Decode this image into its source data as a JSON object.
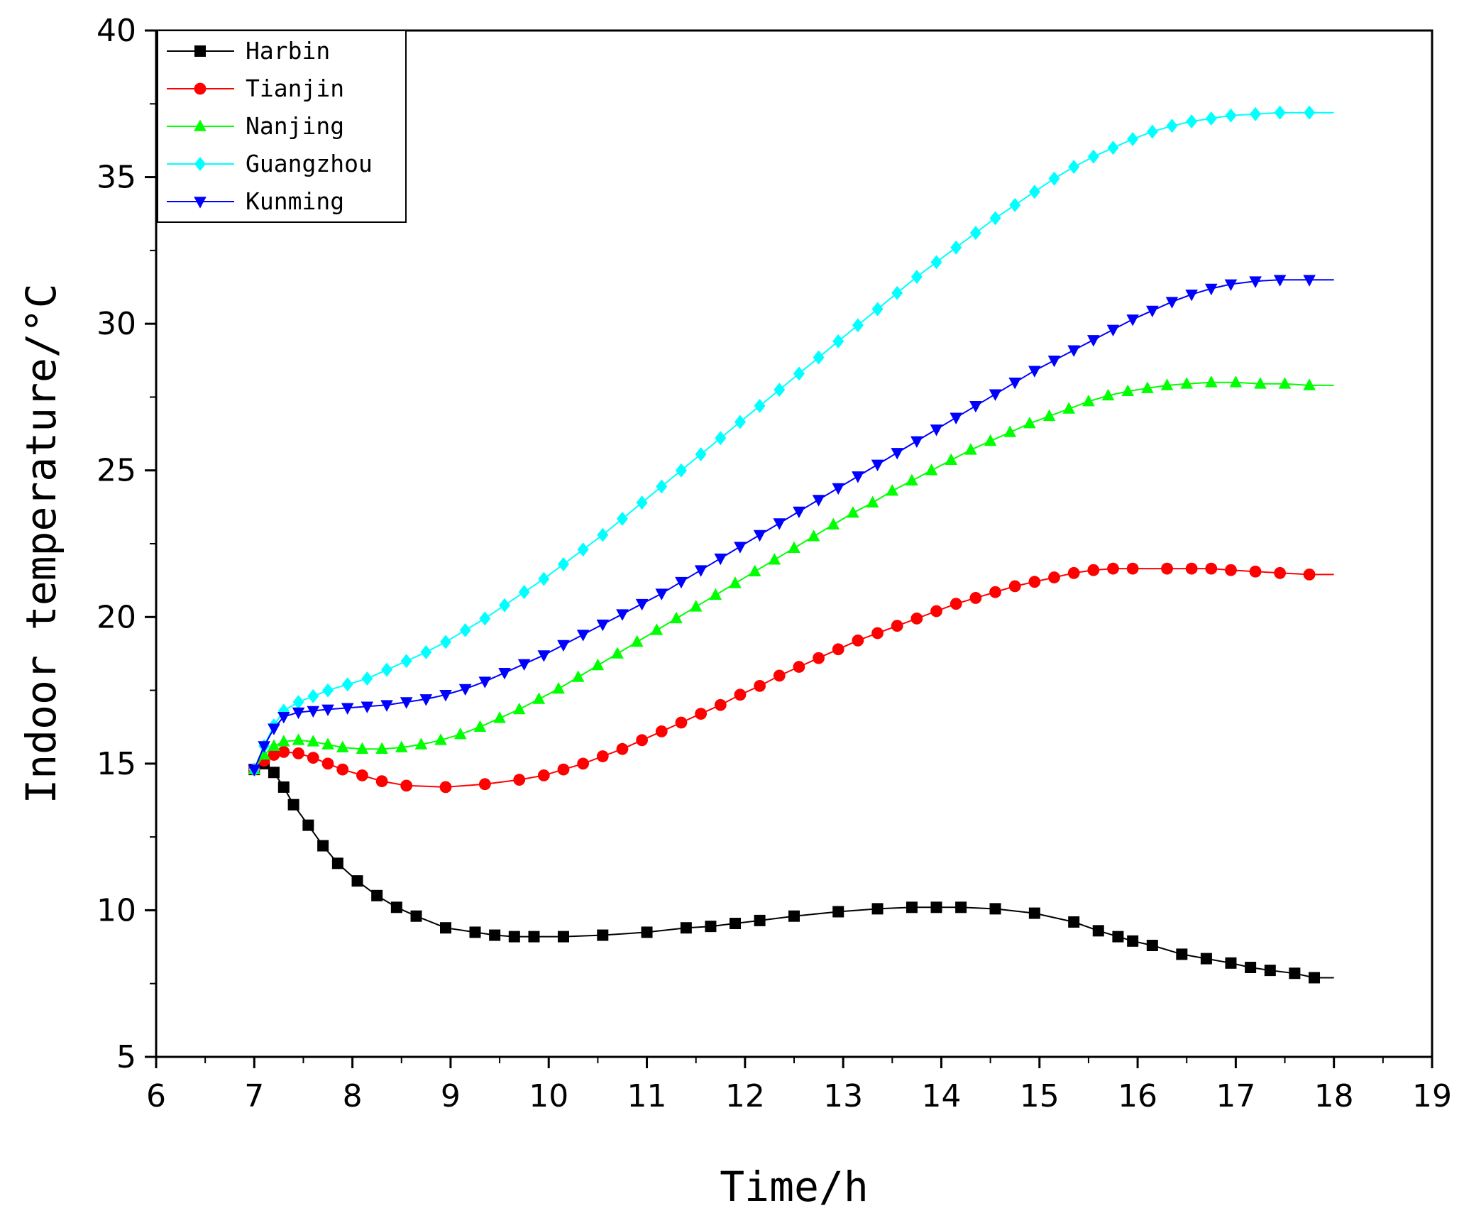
{
  "chart_data": {
    "type": "line",
    "title": "",
    "xlabel": "Time/h",
    "ylabel": "Indoor temperature/°C",
    "xlim": [
      6,
      19
    ],
    "ylim": [
      5,
      40
    ],
    "xticks": [
      "6",
      "7",
      "8",
      "9",
      "10",
      "11",
      "12",
      "13",
      "14",
      "15",
      "16",
      "17",
      "18",
      "19"
    ],
    "yticks": [
      "5",
      "10",
      "15",
      "20",
      "25",
      "30",
      "35",
      "40"
    ],
    "legend_position": "top-left",
    "grid": false,
    "series": [
      {
        "name": "Harbin",
        "color": "#000000",
        "marker": "square",
        "x": [
          7.0,
          7.1,
          7.2,
          7.3,
          7.4,
          7.55,
          7.7,
          7.85,
          8.05,
          8.25,
          8.45,
          8.65,
          8.95,
          9.25,
          9.45,
          9.65,
          9.85,
          10.15,
          10.55,
          11.0,
          11.4,
          11.65,
          11.9,
          12.15,
          12.5,
          12.95,
          13.35,
          13.7,
          13.95,
          14.2,
          14.55,
          14.95,
          15.35,
          15.6,
          15.8,
          15.95,
          16.15,
          16.45,
          16.7,
          16.95,
          17.15,
          17.35,
          17.6,
          17.8
        ],
        "y": [
          14.8,
          15.0,
          14.7,
          14.2,
          13.6,
          12.9,
          12.2,
          11.6,
          11.0,
          10.5,
          10.1,
          9.8,
          9.4,
          9.25,
          9.15,
          9.1,
          9.1,
          9.1,
          9.15,
          9.25,
          9.4,
          9.45,
          9.55,
          9.65,
          9.8,
          9.95,
          10.05,
          10.1,
          10.1,
          10.1,
          10.05,
          9.9,
          9.6,
          9.3,
          9.1,
          8.95,
          8.8,
          8.5,
          8.35,
          8.2,
          8.05,
          7.95,
          7.85,
          7.7
        ]
      },
      {
        "name": "Tianjin",
        "color": "#ff0000",
        "marker": "circle",
        "x": [
          7.0,
          7.1,
          7.2,
          7.3,
          7.45,
          7.6,
          7.75,
          7.9,
          8.1,
          8.3,
          8.55,
          8.95,
          9.35,
          9.7,
          9.95,
          10.15,
          10.35,
          10.55,
          10.75,
          10.95,
          11.15,
          11.35,
          11.55,
          11.75,
          11.95,
          12.15,
          12.35,
          12.55,
          12.75,
          12.95,
          13.15,
          13.35,
          13.55,
          13.75,
          13.95,
          14.15,
          14.35,
          14.55,
          14.75,
          14.95,
          15.15,
          15.35,
          15.55,
          15.75,
          15.95,
          16.3,
          16.55,
          16.75,
          16.95,
          17.2,
          17.45,
          17.75
        ],
        "y": [
          14.8,
          15.1,
          15.3,
          15.4,
          15.35,
          15.2,
          15.0,
          14.8,
          14.6,
          14.4,
          14.25,
          14.2,
          14.3,
          14.45,
          14.6,
          14.8,
          15.0,
          15.25,
          15.5,
          15.8,
          16.1,
          16.4,
          16.7,
          17.0,
          17.35,
          17.65,
          18.0,
          18.3,
          18.6,
          18.9,
          19.2,
          19.45,
          19.7,
          19.95,
          20.2,
          20.45,
          20.65,
          20.85,
          21.05,
          21.2,
          21.35,
          21.5,
          21.6,
          21.65,
          21.65,
          21.65,
          21.65,
          21.65,
          21.6,
          21.55,
          21.5,
          21.45
        ]
      },
      {
        "name": "Nanjing",
        "color": "#00ff00",
        "marker": "triangle-up",
        "x": [
          7.0,
          7.1,
          7.2,
          7.3,
          7.45,
          7.6,
          7.75,
          7.9,
          8.1,
          8.3,
          8.5,
          8.7,
          8.9,
          9.1,
          9.3,
          9.5,
          9.7,
          9.9,
          10.1,
          10.3,
          10.5,
          10.7,
          10.9,
          11.1,
          11.3,
          11.5,
          11.7,
          11.9,
          12.1,
          12.3,
          12.5,
          12.7,
          12.9,
          13.1,
          13.3,
          13.5,
          13.7,
          13.9,
          14.1,
          14.3,
          14.5,
          14.7,
          14.9,
          15.1,
          15.3,
          15.5,
          15.7,
          15.9,
          16.1,
          16.3,
          16.5,
          16.75,
          17.0,
          17.25,
          17.5,
          17.75
        ],
        "y": [
          14.8,
          15.3,
          15.6,
          15.75,
          15.8,
          15.75,
          15.65,
          15.55,
          15.5,
          15.5,
          15.55,
          15.65,
          15.8,
          16.0,
          16.25,
          16.55,
          16.85,
          17.2,
          17.55,
          17.95,
          18.35,
          18.75,
          19.15,
          19.55,
          19.95,
          20.35,
          20.75,
          21.15,
          21.55,
          21.95,
          22.35,
          22.75,
          23.15,
          23.55,
          23.9,
          24.3,
          24.65,
          25.0,
          25.35,
          25.7,
          26.0,
          26.3,
          26.6,
          26.85,
          27.1,
          27.35,
          27.55,
          27.7,
          27.8,
          27.9,
          27.95,
          28.0,
          28.0,
          27.95,
          27.95,
          27.9
        ]
      },
      {
        "name": "Guangzhou",
        "color": "#00ffff",
        "marker": "diamond",
        "x": [
          7.0,
          7.1,
          7.2,
          7.3,
          7.45,
          7.6,
          7.75,
          7.95,
          8.15,
          8.35,
          8.55,
          8.75,
          8.95,
          9.15,
          9.35,
          9.55,
          9.75,
          9.95,
          10.15,
          10.35,
          10.55,
          10.75,
          10.95,
          11.15,
          11.35,
          11.55,
          11.75,
          11.95,
          12.15,
          12.35,
          12.55,
          12.75,
          12.95,
          13.15,
          13.35,
          13.55,
          13.75,
          13.95,
          14.15,
          14.35,
          14.55,
          14.75,
          14.95,
          15.15,
          15.35,
          15.55,
          15.75,
          15.95,
          16.15,
          16.35,
          16.55,
          16.75,
          16.95,
          17.2,
          17.45,
          17.75
        ],
        "y": [
          14.8,
          15.6,
          16.3,
          16.8,
          17.1,
          17.3,
          17.5,
          17.7,
          17.9,
          18.2,
          18.5,
          18.8,
          19.15,
          19.55,
          19.95,
          20.4,
          20.85,
          21.3,
          21.8,
          22.3,
          22.8,
          23.35,
          23.9,
          24.45,
          25.0,
          25.55,
          26.1,
          26.65,
          27.2,
          27.75,
          28.3,
          28.85,
          29.4,
          29.95,
          30.5,
          31.05,
          31.6,
          32.1,
          32.6,
          33.1,
          33.6,
          34.05,
          34.5,
          34.95,
          35.35,
          35.7,
          36.0,
          36.3,
          36.55,
          36.75,
          36.9,
          37.0,
          37.1,
          37.15,
          37.2,
          37.2
        ]
      },
      {
        "name": "Kunming",
        "color": "#0000ff",
        "marker": "triangle-down",
        "x": [
          7.0,
          7.1,
          7.2,
          7.3,
          7.45,
          7.6,
          7.75,
          7.95,
          8.15,
          8.35,
          8.55,
          8.75,
          8.95,
          9.15,
          9.35,
          9.55,
          9.75,
          9.95,
          10.15,
          10.35,
          10.55,
          10.75,
          10.95,
          11.15,
          11.35,
          11.55,
          11.75,
          11.95,
          12.15,
          12.35,
          12.55,
          12.75,
          12.95,
          13.15,
          13.35,
          13.55,
          13.75,
          13.95,
          14.15,
          14.35,
          14.55,
          14.75,
          14.95,
          15.15,
          15.35,
          15.55,
          15.75,
          15.95,
          16.15,
          16.35,
          16.55,
          16.75,
          16.95,
          17.2,
          17.45,
          17.75
        ],
        "y": [
          14.8,
          15.6,
          16.2,
          16.6,
          16.75,
          16.8,
          16.85,
          16.9,
          16.95,
          17.0,
          17.1,
          17.2,
          17.35,
          17.55,
          17.8,
          18.1,
          18.4,
          18.7,
          19.05,
          19.4,
          19.75,
          20.1,
          20.45,
          20.8,
          21.2,
          21.6,
          22.0,
          22.4,
          22.8,
          23.2,
          23.6,
          24.0,
          24.4,
          24.8,
          25.2,
          25.6,
          26.0,
          26.4,
          26.8,
          27.2,
          27.6,
          28.0,
          28.4,
          28.75,
          29.1,
          29.45,
          29.8,
          30.15,
          30.45,
          30.75,
          31.0,
          31.2,
          31.35,
          31.45,
          31.5,
          31.5
        ]
      }
    ]
  }
}
